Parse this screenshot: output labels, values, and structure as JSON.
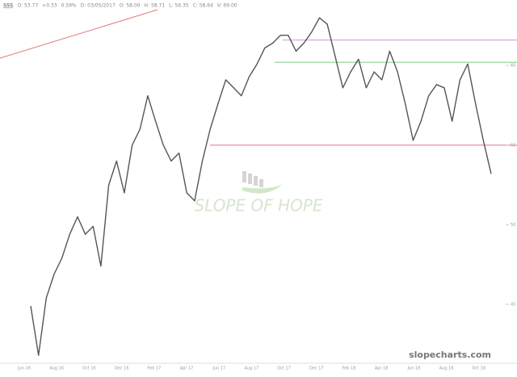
{
  "chart_data": {
    "type": "line",
    "header": [
      "SSS",
      "O: 53.77",
      "+0.33",
      "0.59%",
      "D: 03/05/2017",
      "O: 58.00",
      "H: 58.71",
      "L: 56.35",
      "C: 58.64",
      "V: 69.00"
    ],
    "x_labels": [
      "Jun 16",
      "Aug 16",
      "Oct 16",
      "Dec 16",
      "Feb 17",
      "Apr 17",
      "Jun 17",
      "Aug 17",
      "Oct 17",
      "Dec 17",
      "Feb 18",
      "Apr 18",
      "Jun 18",
      "Aug 18",
      "Oct 18"
    ],
    "values": [
      44.9,
      41.8,
      45.4,
      46.9,
      47.9,
      49.4,
      50.5,
      49.4,
      49.9,
      47.4,
      52.5,
      54.0,
      52.0,
      55.0,
      56.0,
      58.1,
      56.5,
      55.0,
      54.0,
      54.5,
      52.0,
      51.5,
      54.0,
      56.0,
      57.6,
      59.1,
      58.6,
      58.1,
      59.3,
      60.1,
      61.1,
      61.4,
      61.9,
      61.9,
      60.9,
      61.4,
      62.1,
      63.0,
      62.6,
      60.6,
      58.6,
      59.6,
      60.4,
      58.6,
      59.6,
      59.1,
      60.9,
      59.6,
      57.6,
      55.3,
      56.5,
      58.1,
      58.8,
      58.6,
      56.5,
      59.1,
      60.1,
      57.6,
      55.3,
      53.2
    ],
    "color": "#555555",
    "ylim": [
      41.3,
      63.1
    ],
    "yticks": [
      45,
      50,
      55,
      60
    ],
    "levels": [
      {
        "value": 61.6,
        "color": "#e39be3"
      },
      {
        "value": 60.2,
        "color": "#8fd18f"
      },
      {
        "value": 55.0,
        "color": "#e58fb0"
      }
    ],
    "watermark": "SLOPE OF HOPE",
    "site": "slopecharts.com"
  }
}
